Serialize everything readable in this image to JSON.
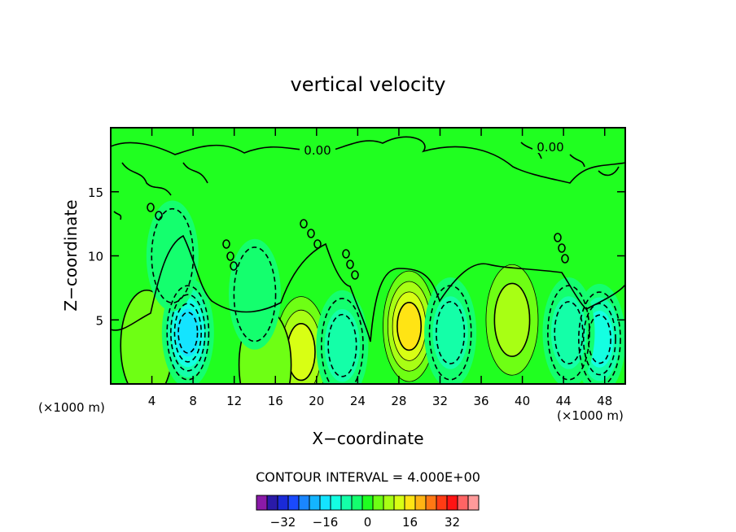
{
  "chart_data": {
    "type": "heatmap",
    "title": "vertical velocity",
    "xlabel": "X−coordinate",
    "ylabel": "Z−coordinate",
    "x_unit_label": "(×1000 m)",
    "y_unit_label": "(×1000 m)",
    "xlim": [
      0,
      50
    ],
    "ylim": [
      0,
      20
    ],
    "x_ticks": [
      4,
      8,
      12,
      16,
      20,
      24,
      28,
      32,
      36,
      40,
      44,
      48
    ],
    "y_ticks": [
      5,
      10,
      15
    ],
    "contour_interval_text": "CONTOUR INTERVAL = 4.000E+00",
    "contour_label": "0.00",
    "colorbar": {
      "levels": [
        -40,
        -36,
        -32,
        -28,
        -24,
        -20,
        -16,
        -12,
        -8,
        -4,
        0,
        4,
        8,
        12,
        16,
        20,
        24,
        28,
        32,
        36,
        40
      ],
      "colors": [
        "#8a1aa8",
        "#2a1aa8",
        "#1a2ad8",
        "#1a4aff",
        "#1a86ff",
        "#14b4ff",
        "#14e4ff",
        "#14ffe2",
        "#14ffa8",
        "#14ff6e",
        "#20ff20",
        "#6eff14",
        "#a8ff14",
        "#d8ff14",
        "#ffe414",
        "#ffb414",
        "#ff7814",
        "#ff3c14",
        "#ff1414",
        "#ff6464",
        "#ff9a9a"
      ],
      "tick_labels": [
        "−32",
        "−16",
        "0",
        "16",
        "32"
      ],
      "tick_values": [
        -32,
        -16,
        0,
        16,
        32
      ]
    },
    "features": [
      {
        "kind": "updraft",
        "x": 29,
        "z": 4.5,
        "value": 16
      },
      {
        "kind": "updraft",
        "x": 39,
        "z": 5,
        "value": 8
      },
      {
        "kind": "updraft",
        "x": 18.5,
        "z": 2.5,
        "value": 12
      },
      {
        "kind": "updraft",
        "x": 3.5,
        "z": 3,
        "value": 4
      },
      {
        "kind": "updraft",
        "x": 15,
        "z": 1.5,
        "value": 4
      },
      {
        "kind": "downdraft",
        "x": 7.5,
        "z": 4,
        "value": -16
      },
      {
        "kind": "downdraft",
        "x": 47.5,
        "z": 3.5,
        "value": -12
      },
      {
        "kind": "downdraft",
        "x": 22.5,
        "z": 3,
        "value": -8
      },
      {
        "kind": "downdraft",
        "x": 33,
        "z": 4,
        "value": -8
      },
      {
        "kind": "downdraft",
        "x": 44.5,
        "z": 4,
        "value": -8
      },
      {
        "kind": "downdraft",
        "x": 14,
        "z": 7,
        "value": -4
      },
      {
        "kind": "downdraft",
        "x": 6,
        "z": 10,
        "value": -4
      }
    ]
  }
}
